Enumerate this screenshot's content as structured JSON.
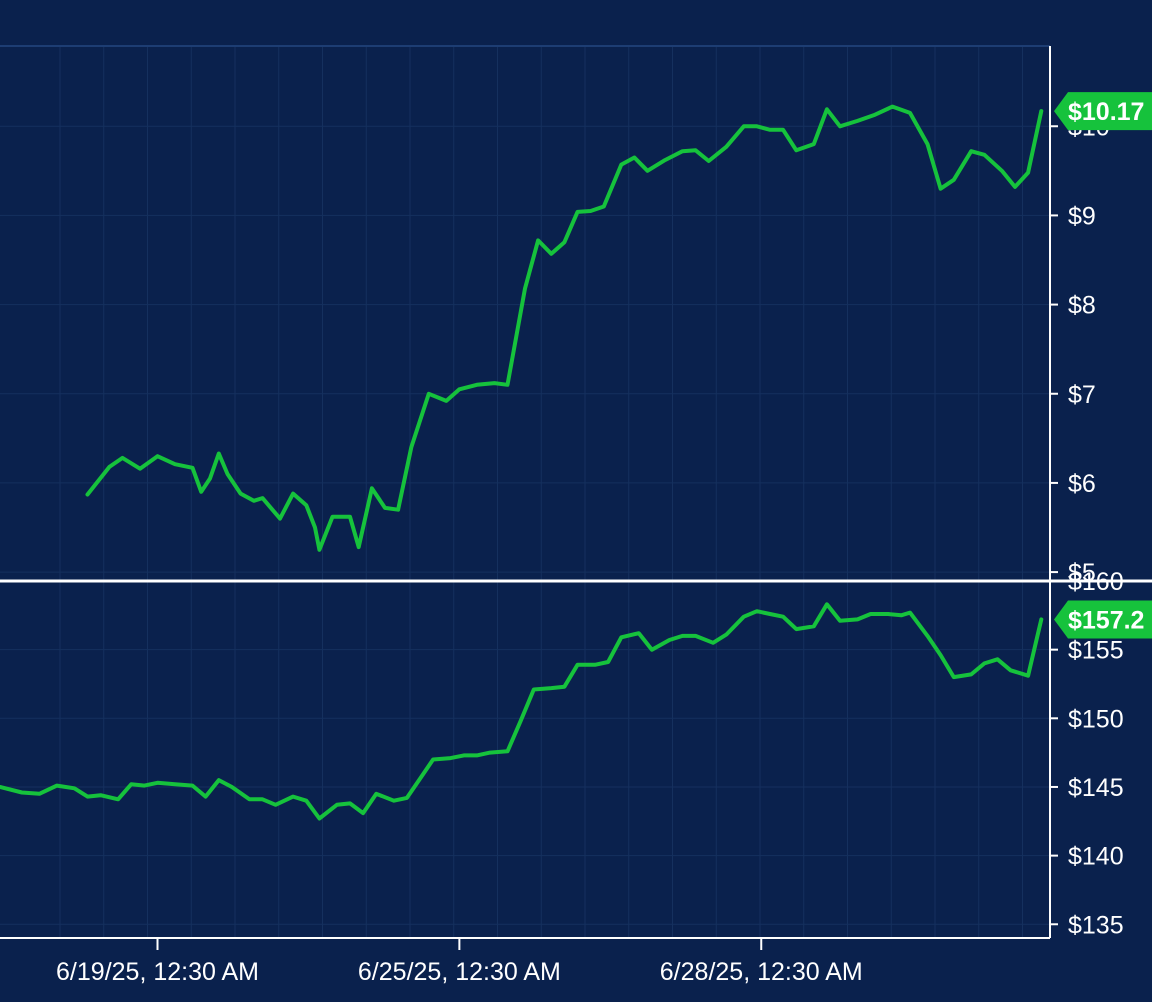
{
  "colors": {
    "background": "#0a214d",
    "grid": "#15305e",
    "line": "#16c23c",
    "axis": "#ffffff",
    "text": "#ffffff",
    "badge": "#16c23c"
  },
  "chart_data": [
    {
      "type": "line",
      "ylim": [
        4.9,
        10.9
      ],
      "y_ticks": [
        5,
        6,
        7,
        8,
        9,
        10
      ],
      "y_tick_labels": [
        "$5",
        "$6",
        "$7",
        "$8",
        "$9",
        "$10"
      ],
      "last_value_label": "$10.17",
      "series": [
        {
          "values": [
            [
              2.0,
              5.87
            ],
            [
              2.5,
              6.18
            ],
            [
              2.8,
              6.28
            ],
            [
              3.2,
              6.16
            ],
            [
              3.6,
              6.3
            ],
            [
              4.0,
              6.21
            ],
            [
              4.4,
              6.17
            ],
            [
              4.6,
              5.9
            ],
            [
              4.8,
              6.05
            ],
            [
              5.0,
              6.33
            ],
            [
              5.2,
              6.1
            ],
            [
              5.5,
              5.88
            ],
            [
              5.8,
              5.8
            ],
            [
              6.0,
              5.83
            ],
            [
              6.4,
              5.6
            ],
            [
              6.7,
              5.88
            ],
            [
              7.0,
              5.75
            ],
            [
              7.2,
              5.5
            ],
            [
              7.3,
              5.25
            ],
            [
              7.6,
              5.62
            ],
            [
              8.0,
              5.62
            ],
            [
              8.2,
              5.28
            ],
            [
              8.5,
              5.94
            ],
            [
              8.8,
              5.72
            ],
            [
              9.1,
              5.7
            ],
            [
              9.4,
              6.4
            ],
            [
              9.8,
              7.0
            ],
            [
              10.2,
              6.92
            ],
            [
              10.5,
              7.05
            ],
            [
              10.9,
              7.1
            ],
            [
              11.3,
              7.12
            ],
            [
              11.6,
              7.1
            ],
            [
              12.0,
              8.18
            ],
            [
              12.3,
              8.72
            ],
            [
              12.6,
              8.57
            ],
            [
              12.9,
              8.7
            ],
            [
              13.2,
              9.04
            ],
            [
              13.5,
              9.05
            ],
            [
              13.8,
              9.1
            ],
            [
              14.2,
              9.57
            ],
            [
              14.5,
              9.65
            ],
            [
              14.8,
              9.5
            ],
            [
              15.2,
              9.62
            ],
            [
              15.6,
              9.72
            ],
            [
              15.9,
              9.73
            ],
            [
              16.2,
              9.61
            ],
            [
              16.6,
              9.77
            ],
            [
              17.0,
              10.0
            ],
            [
              17.3,
              10.0
            ],
            [
              17.6,
              9.96
            ],
            [
              17.9,
              9.96
            ],
            [
              18.2,
              9.73
            ],
            [
              18.6,
              9.8
            ],
            [
              18.9,
              10.19
            ],
            [
              19.2,
              10.0
            ],
            [
              19.6,
              10.06
            ],
            [
              20.0,
              10.13
            ],
            [
              20.4,
              10.22
            ],
            [
              20.8,
              10.15
            ],
            [
              21.2,
              9.8
            ],
            [
              21.5,
              9.3
            ],
            [
              21.8,
              9.4
            ],
            [
              22.2,
              9.72
            ],
            [
              22.5,
              9.68
            ],
            [
              22.9,
              9.5
            ],
            [
              23.2,
              9.32
            ],
            [
              23.5,
              9.48
            ],
            [
              23.8,
              10.17
            ]
          ]
        }
      ]
    },
    {
      "type": "line",
      "ylim": [
        134,
        160
      ],
      "y_ticks": [
        135,
        140,
        145,
        150,
        155,
        160
      ],
      "y_tick_labels": [
        "$135",
        "$140",
        "$145",
        "$150",
        "$155",
        "$160"
      ],
      "x_ticks": [
        3.6,
        10.5,
        17.4
      ],
      "x_tick_labels": [
        "6/19/25, 12:30 AM",
        "6/25/25, 12:30 AM",
        "6/28/25, 12:30 AM"
      ],
      "last_value_label": "$157.2",
      "series": [
        {
          "values": [
            [
              0.0,
              145.0
            ],
            [
              0.5,
              144.6
            ],
            [
              0.9,
              144.5
            ],
            [
              1.3,
              145.1
            ],
            [
              1.7,
              144.9
            ],
            [
              2.0,
              144.3
            ],
            [
              2.3,
              144.4
            ],
            [
              2.7,
              144.1
            ],
            [
              3.0,
              145.2
            ],
            [
              3.3,
              145.1
            ],
            [
              3.6,
              145.3
            ],
            [
              4.0,
              145.2
            ],
            [
              4.4,
              145.1
            ],
            [
              4.7,
              144.3
            ],
            [
              5.0,
              145.5
            ],
            [
              5.3,
              145.0
            ],
            [
              5.7,
              144.1
            ],
            [
              6.0,
              144.1
            ],
            [
              6.3,
              143.7
            ],
            [
              6.7,
              144.3
            ],
            [
              7.0,
              144.0
            ],
            [
              7.3,
              142.7
            ],
            [
              7.7,
              143.7
            ],
            [
              8.0,
              143.8
            ],
            [
              8.3,
              143.1
            ],
            [
              8.6,
              144.5
            ],
            [
              9.0,
              144.0
            ],
            [
              9.3,
              144.2
            ],
            [
              9.6,
              145.6
            ],
            [
              9.9,
              147.0
            ],
            [
              10.3,
              147.1
            ],
            [
              10.6,
              147.3
            ],
            [
              10.9,
              147.3
            ],
            [
              11.2,
              147.5
            ],
            [
              11.6,
              147.6
            ],
            [
              11.9,
              149.8
            ],
            [
              12.2,
              152.1
            ],
            [
              12.6,
              152.2
            ],
            [
              12.9,
              152.3
            ],
            [
              13.2,
              153.9
            ],
            [
              13.6,
              153.9
            ],
            [
              13.9,
              154.1
            ],
            [
              14.2,
              155.9
            ],
            [
              14.6,
              156.2
            ],
            [
              14.9,
              155.0
            ],
            [
              15.3,
              155.7
            ],
            [
              15.6,
              156.0
            ],
            [
              15.9,
              156.0
            ],
            [
              16.3,
              155.5
            ],
            [
              16.6,
              156.1
            ],
            [
              17.0,
              157.4
            ],
            [
              17.3,
              157.8
            ],
            [
              17.6,
              157.6
            ],
            [
              17.9,
              157.4
            ],
            [
              18.2,
              156.5
            ],
            [
              18.6,
              156.7
            ],
            [
              18.9,
              158.3
            ],
            [
              19.2,
              157.1
            ],
            [
              19.6,
              157.2
            ],
            [
              19.9,
              157.6
            ],
            [
              20.3,
              157.6
            ],
            [
              20.6,
              157.5
            ],
            [
              20.8,
              157.7
            ],
            [
              21.2,
              156.0
            ],
            [
              21.5,
              154.6
            ],
            [
              21.8,
              153.0
            ],
            [
              22.2,
              153.2
            ],
            [
              22.5,
              154.0
            ],
            [
              22.8,
              154.3
            ],
            [
              23.1,
              153.5
            ],
            [
              23.5,
              153.1
            ],
            [
              23.8,
              157.2
            ]
          ]
        }
      ]
    }
  ]
}
